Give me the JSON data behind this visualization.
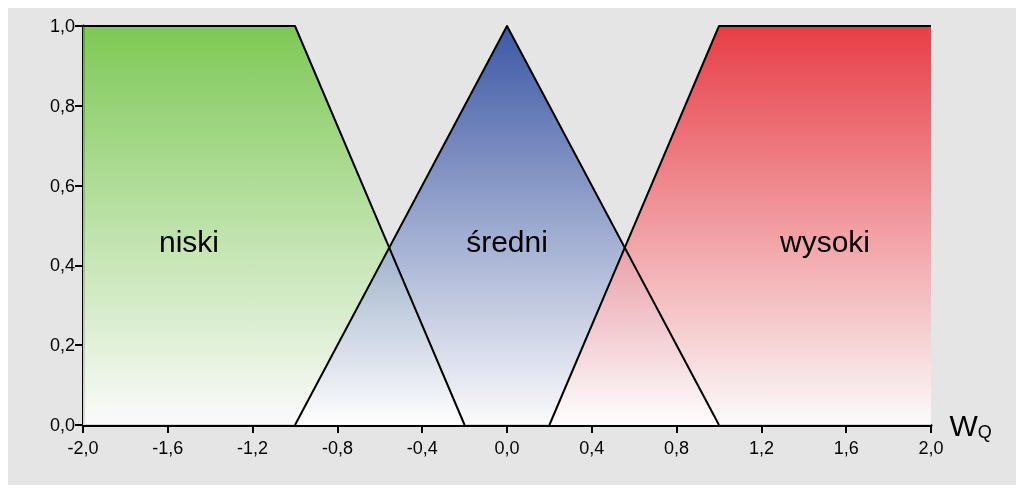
{
  "chart_data": {
    "type": "area",
    "xlabel": "W$_{Q}$",
    "legend": false,
    "grid": false,
    "series": [
      {
        "name": "niski",
        "color": "#6cc43c",
        "x": [
          -2,
          -1,
          -0.2
        ],
        "values": [
          1,
          1,
          0
        ]
      },
      {
        "name": "średni",
        "color": "#1f3f99",
        "x": [
          -1,
          0,
          1
        ],
        "values": [
          0,
          1,
          0
        ]
      },
      {
        "name": "wysoki",
        "color": "#e8202a",
        "x": [
          0.2,
          1,
          2
        ],
        "values": [
          0,
          1,
          1
        ]
      }
    ],
    "xlim": [
      -2,
      2
    ],
    "xticks": [
      {
        "value": -2,
        "label": "-2,0"
      },
      {
        "value": -1.6,
        "label": "-1,6"
      },
      {
        "value": -1.2,
        "label": "-1,2"
      },
      {
        "value": -0.8,
        "label": "-0,8"
      },
      {
        "value": -0.4,
        "label": "-0,4"
      },
      {
        "value": 0,
        "label": "0,0"
      },
      {
        "value": 0.4,
        "label": "0,4"
      },
      {
        "value": 0.8,
        "label": "0,8"
      },
      {
        "value": 1.2,
        "label": "1,2"
      },
      {
        "value": 1.6,
        "label": "1,6"
      },
      {
        "value": 2,
        "label": "2,0"
      }
    ],
    "ylim": [
      0,
      1
    ],
    "yticks": [
      {
        "value": 0,
        "label": "0,0"
      },
      {
        "value": 0.2,
        "label": "0,2"
      },
      {
        "value": 0.4,
        "label": "0,4"
      },
      {
        "value": 0.6,
        "label": "0,6"
      },
      {
        "value": 0.8,
        "label": "0,8"
      },
      {
        "value": 1,
        "label": "1,0"
      }
    ]
  }
}
